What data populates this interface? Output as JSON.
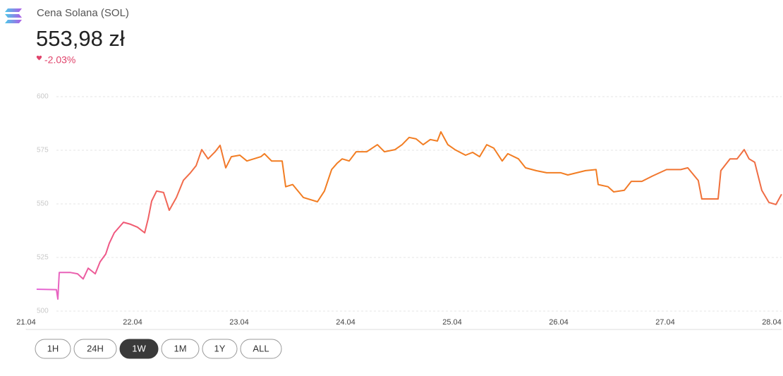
{
  "chart_data": {
    "type": "line",
    "title": "Cena Solana (SOL)",
    "price": "553,98 zł",
    "change": "-2.03%",
    "x": [
      0.099,
      0.285,
      0.298,
      0.311,
      0.417,
      0.483,
      0.536,
      0.583,
      0.649,
      0.695,
      0.748,
      0.781,
      0.828,
      0.914,
      0.98,
      1.046,
      1.113,
      1.146,
      1.179,
      1.225,
      1.291,
      1.344,
      1.411,
      1.477,
      1.543,
      1.596,
      1.649,
      1.709,
      1.775,
      1.821,
      1.874,
      1.927,
      2.007,
      2.073,
      2.205,
      2.238,
      2.305,
      2.404,
      2.437,
      2.503,
      2.603,
      2.735,
      2.801,
      2.868,
      2.921,
      2.967,
      3.033,
      3.099,
      3.199,
      3.298,
      3.364,
      3.464,
      3.53,
      3.596,
      3.662,
      3.728,
      3.795,
      3.861,
      3.894,
      3.96,
      4.026,
      4.126,
      4.192,
      4.258,
      4.325,
      4.391,
      4.47,
      4.523,
      4.623,
      4.689,
      4.788,
      4.887,
      5.02,
      5.086,
      5.252,
      5.351,
      5.371,
      5.464,
      5.517,
      5.616,
      5.682,
      5.781,
      5.881,
      6.013,
      6.146,
      6.212,
      6.311,
      6.344,
      6.497,
      6.523,
      6.609,
      6.675,
      6.742,
      6.788,
      6.841,
      6.907,
      6.974,
      7.04,
      7.093
    ],
    "series": [
      {
        "colors": [
          "#e36be6",
          "#f0567c",
          "#f27d22",
          "#f27d22",
          "#ef6a48"
        ],
        "values": [
          510.2,
          510,
          505.6,
          518,
          518,
          517.4,
          515,
          520,
          517.4,
          523,
          526.6,
          531.6,
          536.5,
          541.4,
          540.5,
          539.1,
          536.5,
          543,
          551.3,
          556,
          555.3,
          547,
          553,
          561,
          564.5,
          567.8,
          575.3,
          571,
          574.3,
          577.3,
          566.8,
          572,
          572.7,
          570,
          572,
          573.4,
          570,
          570,
          558,
          559,
          553,
          551,
          556,
          566,
          569,
          571,
          570,
          574.3,
          574.3,
          577.6,
          574.3,
          575.3,
          577.6,
          581,
          580.3,
          577.6,
          580,
          579.3,
          583.6,
          577.6,
          575.3,
          572.7,
          574,
          572,
          577.6,
          576,
          570,
          573.4,
          571,
          566.8,
          565.5,
          564.5,
          564.5,
          563.5,
          565.5,
          566,
          559,
          558,
          555.6,
          556.3,
          560.5,
          560.5,
          563,
          566,
          566,
          566.8,
          560.9,
          552.3,
          552.3,
          565.5,
          571,
          571,
          575.3,
          571,
          569.4,
          556.3,
          550.7,
          549.7,
          554.5
        ]
      }
    ],
    "xlim": [
      0,
      7.093
    ],
    "xticks": [
      {
        "value": 0,
        "label": "21.04"
      },
      {
        "value": 1,
        "label": "22.04"
      },
      {
        "value": 2,
        "label": "23.04"
      },
      {
        "value": 3,
        "label": "24.04"
      },
      {
        "value": 4,
        "label": "25.04"
      },
      {
        "value": 5,
        "label": "26.04"
      },
      {
        "value": 6,
        "label": "27.04"
      },
      {
        "value": 7,
        "label": "28.04"
      }
    ],
    "ylim": [
      500,
      600
    ],
    "yticks": [
      500,
      525,
      550,
      575,
      600
    ],
    "grid": true
  },
  "range_buttons": [
    "1H",
    "24H",
    "1W",
    "1M",
    "1Y",
    "ALL"
  ],
  "active_range": "1W"
}
